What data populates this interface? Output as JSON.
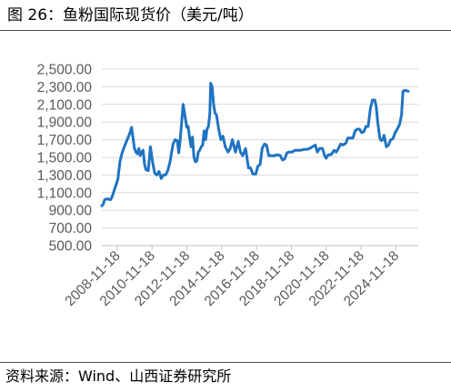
{
  "figure": {
    "title": "图 26：鱼粉国际现货价（美元/吨）",
    "source": "资料来源：Wind、山西证券研究所"
  },
  "colors": {
    "line": "#1f73c2",
    "grid": "#d9d9d9",
    "axis": "#bfbfbf",
    "tick_text": "#595959",
    "rule": "#4a4a4a"
  },
  "chart_data": {
    "type": "line",
    "title": "",
    "xlabel": "",
    "ylabel": "",
    "ylim": [
      500,
      2500
    ],
    "xlim": [
      "2008-01-01",
      "2026-03-01"
    ],
    "y_ticks": [
      500,
      700,
      900,
      1100,
      1300,
      1500,
      1700,
      1900,
      2100,
      2300,
      2500
    ],
    "y_tick_labels": [
      "500.00",
      "700.00",
      "900.00",
      "1,100.00",
      "1,300.00",
      "1,500.00",
      "1,700.00",
      "1,900.00",
      "2,100.00",
      "2,300.00",
      "2,500.00"
    ],
    "x_ticks": [
      "2008-11-18",
      "2010-11-18",
      "2012-11-18",
      "2014-11-18",
      "2016-11-18",
      "2018-11-18",
      "2020-11-18",
      "2022-11-18",
      "2024-11-18"
    ],
    "grid": "horizontal",
    "legend": "none",
    "series": [
      {
        "name": "",
        "points": [
          [
            "2008-01-01",
            950
          ],
          [
            "2008-02-01",
            970
          ],
          [
            "2008-03-01",
            1020
          ],
          [
            "2008-05-01",
            1030
          ],
          [
            "2008-07-01",
            1020
          ],
          [
            "2008-08-01",
            1050
          ],
          [
            "2008-10-01",
            1150
          ],
          [
            "2008-12-01",
            1250
          ],
          [
            "2009-01-15",
            1450
          ],
          [
            "2009-03-01",
            1550
          ],
          [
            "2009-04-15",
            1620
          ],
          [
            "2009-06-01",
            1680
          ],
          [
            "2009-08-01",
            1760
          ],
          [
            "2009-09-15",
            1840
          ],
          [
            "2009-10-15",
            1720
          ],
          [
            "2009-11-15",
            1600
          ],
          [
            "2009-12-15",
            1560
          ],
          [
            "2010-01-15",
            1540
          ],
          [
            "2010-02-15",
            1600
          ],
          [
            "2010-03-15",
            1520
          ],
          [
            "2010-04-15",
            1560
          ],
          [
            "2010-05-15",
            1580
          ],
          [
            "2010-06-15",
            1420
          ],
          [
            "2010-07-15",
            1360
          ],
          [
            "2010-09-01",
            1350
          ],
          [
            "2010-10-15",
            1620
          ],
          [
            "2010-12-01",
            1440
          ],
          [
            "2011-01-15",
            1320
          ],
          [
            "2011-03-01",
            1300
          ],
          [
            "2011-04-15",
            1340
          ],
          [
            "2011-06-01",
            1260
          ],
          [
            "2011-07-15",
            1300
          ],
          [
            "2011-09-01",
            1300
          ],
          [
            "2011-10-15",
            1350
          ],
          [
            "2011-12-01",
            1450
          ],
          [
            "2012-02-01",
            1650
          ],
          [
            "2012-03-15",
            1700
          ],
          [
            "2012-05-01",
            1690
          ],
          [
            "2012-06-01",
            1550
          ],
          [
            "2012-07-01",
            1700
          ],
          [
            "2012-08-01",
            1900
          ],
          [
            "2012-09-01",
            2100
          ],
          [
            "2012-10-01",
            2000
          ],
          [
            "2012-11-15",
            1840
          ],
          [
            "2012-12-15",
            1850
          ],
          [
            "2013-01-15",
            1720
          ],
          [
            "2013-02-15",
            1620
          ],
          [
            "2013-03-15",
            1730
          ],
          [
            "2013-04-15",
            1500
          ],
          [
            "2013-05-15",
            1450
          ],
          [
            "2013-06-15",
            1460
          ],
          [
            "2013-07-15",
            1560
          ],
          [
            "2013-08-15",
            1580
          ],
          [
            "2013-09-15",
            1620
          ],
          [
            "2013-10-15",
            1640
          ],
          [
            "2013-11-15",
            1800
          ],
          [
            "2013-12-15",
            1700
          ],
          [
            "2014-01-15",
            1820
          ],
          [
            "2014-02-15",
            1850
          ],
          [
            "2014-03-15",
            2000
          ],
          [
            "2014-04-01",
            2340
          ],
          [
            "2014-05-01",
            2300
          ],
          [
            "2014-06-01",
            2100
          ],
          [
            "2014-07-01",
            2000
          ],
          [
            "2014-08-01",
            1980
          ],
          [
            "2014-09-15",
            1820
          ],
          [
            "2014-11-01",
            1700
          ],
          [
            "2014-12-15",
            1740
          ],
          [
            "2015-02-01",
            1620
          ],
          [
            "2015-04-01",
            1560
          ],
          [
            "2015-05-15",
            1600
          ],
          [
            "2015-07-01",
            1700
          ],
          [
            "2015-09-01",
            1560
          ],
          [
            "2015-11-01",
            1680
          ],
          [
            "2015-12-15",
            1560
          ],
          [
            "2016-02-01",
            1520
          ],
          [
            "2016-04-01",
            1600
          ],
          [
            "2016-06-01",
            1380
          ],
          [
            "2016-07-15",
            1380
          ],
          [
            "2016-09-01",
            1310
          ],
          [
            "2016-11-01",
            1310
          ],
          [
            "2016-12-15",
            1400
          ],
          [
            "2017-02-01",
            1420
          ],
          [
            "2017-03-15",
            1600
          ],
          [
            "2017-05-01",
            1650
          ],
          [
            "2017-06-15",
            1640
          ],
          [
            "2017-08-01",
            1520
          ],
          [
            "2017-10-01",
            1520
          ],
          [
            "2017-12-01",
            1520
          ],
          [
            "2018-02-01",
            1530
          ],
          [
            "2018-04-01",
            1520
          ],
          [
            "2018-05-15",
            1470
          ],
          [
            "2018-07-01",
            1480
          ],
          [
            "2018-08-15",
            1550
          ],
          [
            "2018-10-01",
            1560
          ],
          [
            "2018-12-01",
            1560
          ],
          [
            "2019-02-01",
            1580
          ],
          [
            "2019-04-01",
            1580
          ],
          [
            "2019-06-01",
            1580
          ],
          [
            "2019-08-01",
            1590
          ],
          [
            "2019-10-01",
            1590
          ],
          [
            "2019-12-01",
            1600
          ],
          [
            "2020-02-01",
            1620
          ],
          [
            "2020-04-01",
            1640
          ],
          [
            "2020-05-15",
            1560
          ],
          [
            "2020-07-01",
            1600
          ],
          [
            "2020-09-01",
            1600
          ],
          [
            "2020-10-15",
            1520
          ],
          [
            "2020-11-15",
            1490
          ],
          [
            "2021-01-01",
            1530
          ],
          [
            "2021-03-01",
            1530
          ],
          [
            "2021-05-01",
            1580
          ],
          [
            "2021-06-15",
            1560
          ],
          [
            "2021-08-01",
            1600
          ],
          [
            "2021-09-15",
            1650
          ],
          [
            "2021-11-01",
            1640
          ],
          [
            "2022-01-01",
            1660
          ],
          [
            "2022-02-15",
            1720
          ],
          [
            "2022-04-01",
            1720
          ],
          [
            "2022-06-01",
            1720
          ],
          [
            "2022-07-15",
            1800
          ],
          [
            "2022-09-01",
            1820
          ],
          [
            "2022-10-15",
            1820
          ],
          [
            "2022-12-01",
            1780
          ],
          [
            "2023-01-15",
            1790
          ],
          [
            "2023-03-01",
            1850
          ],
          [
            "2023-04-15",
            1850
          ],
          [
            "2023-06-01",
            2050
          ],
          [
            "2023-07-15",
            2150
          ],
          [
            "2023-09-01",
            2150
          ],
          [
            "2023-10-01",
            2080
          ],
          [
            "2023-11-01",
            1900
          ],
          [
            "2023-12-15",
            1720
          ],
          [
            "2024-01-15",
            1690
          ],
          [
            "2024-02-15",
            1700
          ],
          [
            "2024-03-15",
            1750
          ],
          [
            "2024-05-01",
            1620
          ],
          [
            "2024-06-15",
            1640
          ],
          [
            "2024-08-01",
            1700
          ],
          [
            "2024-09-15",
            1710
          ],
          [
            "2024-11-01",
            1780
          ],
          [
            "2024-12-15",
            1820
          ],
          [
            "2025-02-01",
            1870
          ],
          [
            "2025-03-15",
            1980
          ],
          [
            "2025-04-15",
            2250
          ],
          [
            "2025-06-01",
            2260
          ],
          [
            "2025-08-01",
            2250
          ]
        ]
      }
    ]
  }
}
